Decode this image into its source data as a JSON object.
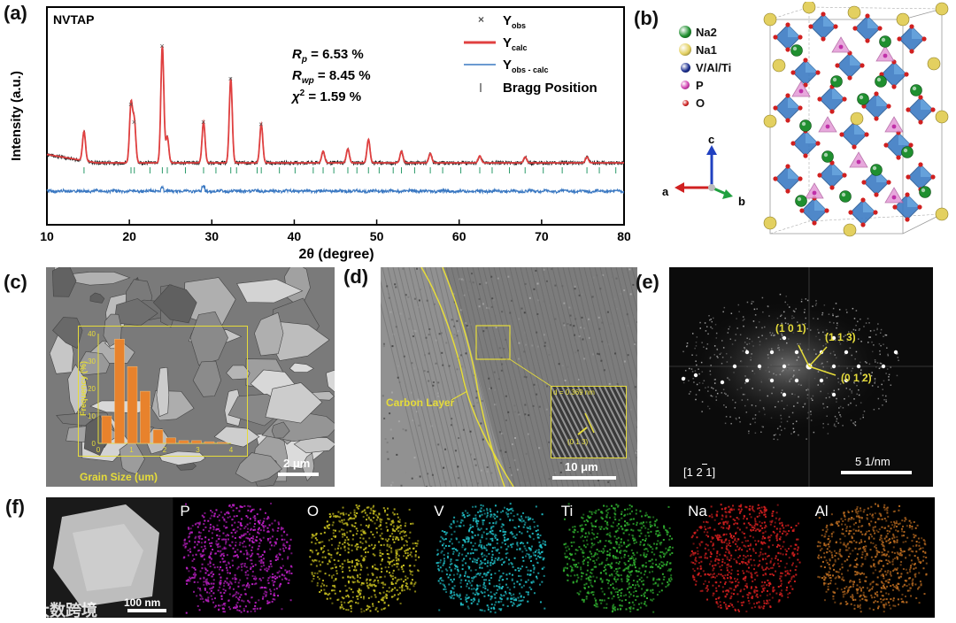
{
  "panels": {
    "a": {
      "label": "(a)",
      "sample": "NVTAP",
      "stats": {
        "rp": "6.53 %",
        "rwp": "8.45 %",
        "chi2": "1.59 %"
      },
      "legend": {
        "obs": "Y",
        "obs_sub": "obs",
        "calc": "Y",
        "calc_sub": "calc",
        "diff": "Y",
        "diff_sub": "obs - calc",
        "bragg": "Bragg Position"
      },
      "colors": {
        "obs": "#1a1a1a",
        "calc": "#e04040",
        "diff": "#3a78c2",
        "bragg": "#2a9a6a"
      }
    },
    "b": {
      "label": "(b)",
      "legend": [
        {
          "name": "Na2",
          "color": "#1f8f2f"
        },
        {
          "name": "Na1",
          "color": "#e3d060"
        },
        {
          "name": "V/Al/Ti",
          "color": "#1c2f8f"
        },
        {
          "name": "P",
          "color": "#d040b0"
        },
        {
          "name": "O",
          "color": "#d02020"
        }
      ],
      "axes": {
        "a": "a",
        "b": "b",
        "c": "c"
      },
      "axis_colors": {
        "a": "#d02020",
        "b": "#20a040",
        "c": "#2040c0"
      }
    },
    "c": {
      "label": "(c)",
      "scale": "2 μm",
      "inset": {
        "xlabel": "Grain Size (um)",
        "ylabel": "Frequency (%)",
        "yticks": [
          "40",
          "30",
          "20",
          "10",
          "0"
        ],
        "xticks": [
          "0",
          "1",
          "2",
          "3",
          "4"
        ]
      }
    },
    "d": {
      "label": "(d)",
      "carbon": "Carbon Layer",
      "dspacing": "d = 0.369 nm",
      "plane": "(0 1 3)",
      "scale": "10 μm"
    },
    "e": {
      "label": "(e)",
      "spots": [
        "(1 0 1)",
        "(1 1 3)",
        "(0 1 2)"
      ],
      "zone": "[1 2 1]",
      "scale": "5 1/nm"
    },
    "f": {
      "label": "(f)",
      "scale": "100 nm",
      "watermark": "大数跨境",
      "maps": [
        {
          "element": "P",
          "color": "#c020c8"
        },
        {
          "element": "O",
          "color": "#c8c020"
        },
        {
          "element": "V",
          "color": "#20c0c8"
        },
        {
          "element": "Ti",
          "color": "#30b030"
        },
        {
          "element": "Na",
          "color": "#d82020"
        },
        {
          "element": "Al",
          "color": "#b86a20"
        }
      ]
    }
  },
  "chart_data": {
    "type": "line",
    "title": "",
    "xlabel": "2θ (degree)",
    "ylabel": "Intensity (a.u.)",
    "xlim": [
      10,
      80
    ],
    "xticks": [
      10,
      20,
      30,
      40,
      50,
      60,
      70,
      80
    ],
    "peaks": [
      {
        "x": 14.5,
        "y": 0.25
      },
      {
        "x": 20.2,
        "y": 0.5
      },
      {
        "x": 20.6,
        "y": 0.35
      },
      {
        "x": 24.0,
        "y": 1.0
      },
      {
        "x": 24.6,
        "y": 0.22
      },
      {
        "x": 29.0,
        "y": 0.35
      },
      {
        "x": 32.3,
        "y": 0.72
      },
      {
        "x": 36.0,
        "y": 0.33
      },
      {
        "x": 43.5,
        "y": 0.1
      },
      {
        "x": 46.5,
        "y": 0.12
      },
      {
        "x": 49.0,
        "y": 0.2
      },
      {
        "x": 53.0,
        "y": 0.1
      },
      {
        "x": 56.5,
        "y": 0.08
      },
      {
        "x": 62.5,
        "y": 0.06
      },
      {
        "x": 68.0,
        "y": 0.05
      },
      {
        "x": 75.5,
        "y": 0.05
      }
    ],
    "bragg_positions": [
      14.5,
      20.2,
      20.6,
      22.5,
      24.0,
      24.6,
      26.8,
      29.0,
      30.5,
      32.3,
      33.0,
      35.5,
      36.0,
      38.2,
      40.1,
      42.3,
      43.5,
      44.8,
      46.5,
      47.6,
      49.0,
      50.3,
      52.0,
      53.0,
      54.6,
      56.5,
      58.0,
      60.2,
      62.5,
      64.0,
      66.1,
      68.0,
      70.2,
      72.5,
      75.5,
      77.0,
      79.0
    ]
  }
}
